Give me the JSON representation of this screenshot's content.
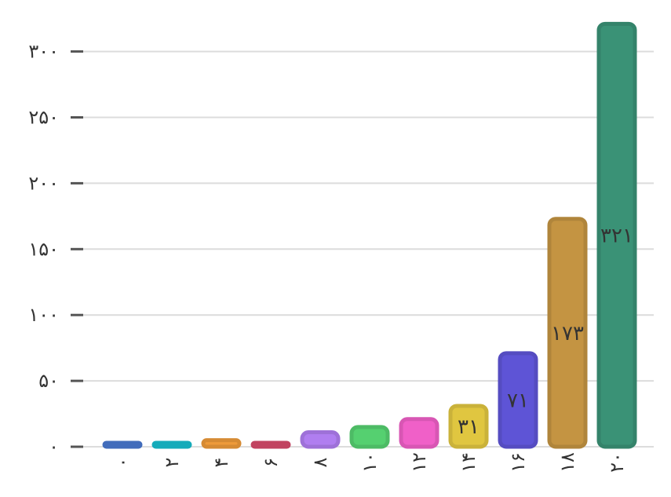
{
  "chart_data": {
    "type": "bar",
    "categories": [
      "۰",
      "۲",
      "۴",
      "۶",
      "۸",
      "۱۰",
      "۱۲",
      "۱۴",
      "۱۶",
      "۱۸",
      "۲۰"
    ],
    "values": [
      3,
      3,
      5,
      3,
      11,
      15,
      21,
      31,
      71,
      173,
      321
    ],
    "data_labels": [
      "",
      "",
      "",
      "",
      "",
      "",
      "",
      "۳۱",
      "۷۱",
      "۱۷۳",
      "۳۲۱"
    ],
    "colors": [
      "#4878d0",
      "#17becf",
      "#ee9a3a",
      "#d64a6b",
      "#b07ef0",
      "#55d070",
      "#f060c8",
      "#e0c640",
      "#5e54d6",
      "#c49442",
      "#3a9276"
    ],
    "y_ticks": [
      0,
      50,
      100,
      150,
      200,
      250,
      300
    ],
    "y_tick_labels": [
      "۰",
      "۵۰",
      "۱۰۰",
      "۱۵۰",
      "۲۰۰",
      "۲۵۰",
      "۳۰۰"
    ],
    "ylim": [
      0,
      324
    ],
    "grid": true,
    "title": "",
    "xlabel": "",
    "ylabel": ""
  }
}
